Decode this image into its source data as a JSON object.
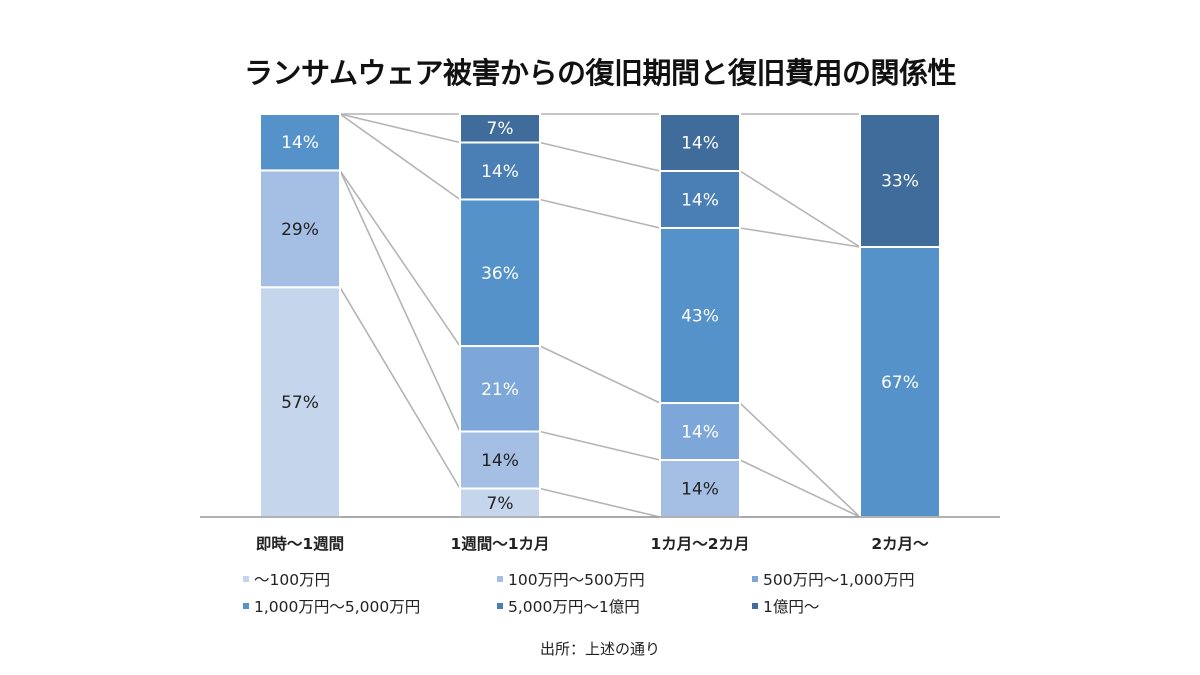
{
  "chart_data": {
    "type": "bar",
    "stacked": true,
    "title": "ランサムウェア被害からの復旧期間と復旧費用の関係性",
    "categories": [
      "即時～1週間",
      "1週間～1カ月",
      "1カ月～2カ月",
      "2カ月～"
    ],
    "series": [
      {
        "name": "～100万円",
        "color": "#c5d5eb",
        "label_color": "#222222",
        "values": [
          57,
          7,
          0,
          0
        ]
      },
      {
        "name": "100万円～500万円",
        "color": "#a4bfe3",
        "label_color": "#222222",
        "values": [
          29,
          14,
          14,
          0
        ]
      },
      {
        "name": "500万円～1,000万円",
        "color": "#7ea7d9",
        "label_color": "#ffffff",
        "values": [
          0,
          21,
          14,
          0
        ]
      },
      {
        "name": "1,000万円～5,000万円",
        "color": "#5592c9",
        "label_color": "#ffffff",
        "values": [
          14,
          36,
          43,
          67
        ]
      },
      {
        "name": "5,000万円～1億円",
        "color": "#4a7fb5",
        "label_color": "#ffffff",
        "values": [
          0,
          14,
          14,
          0
        ]
      },
      {
        "name": "1億円～",
        "color": "#3f6c9a",
        "label_color": "#ffffff",
        "values": [
          0,
          7,
          14,
          33
        ]
      }
    ],
    "value_suffix": "%",
    "ylim": [
      0,
      100
    ],
    "legend_position": "bottom",
    "grid": false
  },
  "source": "出所：上述の通り"
}
